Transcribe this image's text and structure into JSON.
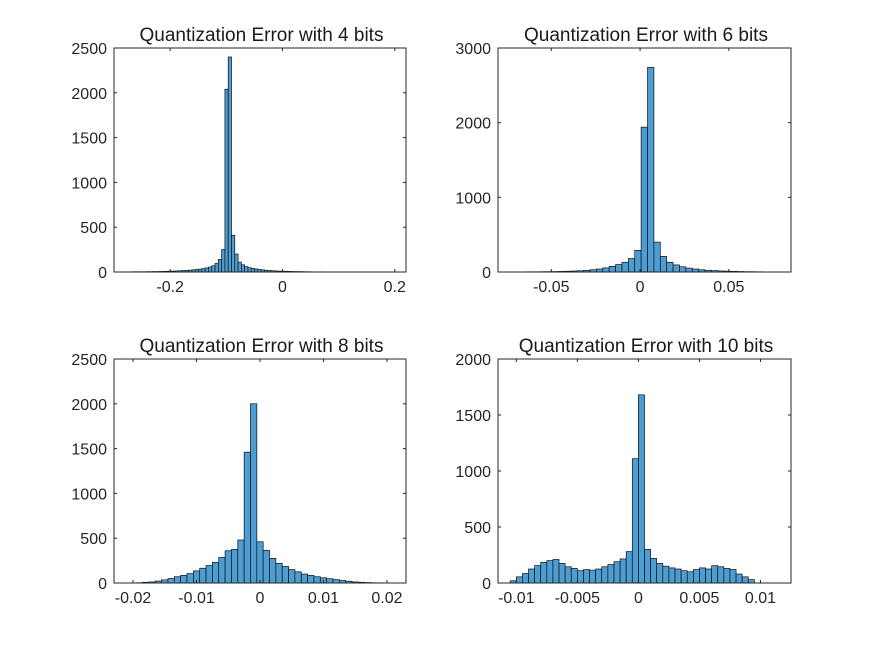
{
  "figure": {
    "colors": {
      "bar_fill": "#4d9dd3",
      "bar_edge": "#111111",
      "axis": "#262626"
    }
  },
  "chart_data": [
    {
      "type": "bar",
      "title": "Quantization Error with 4 bits",
      "xlabel": "",
      "ylabel": "",
      "xlim": [
        -0.3,
        0.22
      ],
      "ylim": [
        0,
        2500
      ],
      "xticks": [
        -0.2,
        0,
        0.2
      ],
      "xtick_labels": [
        "-0.2",
        "0",
        "0.2"
      ],
      "yticks": [
        0,
        500,
        1000,
        1500,
        2000,
        2500
      ],
      "ytick_labels": [
        "0",
        "500",
        "1000",
        "1500",
        "2000",
        "2500"
      ],
      "bin_edges_start": -0.29,
      "bin_width": 0.00586,
      "values": [
        2,
        2,
        2,
        2,
        3,
        3,
        3,
        3,
        4,
        4,
        5,
        5,
        6,
        7,
        8,
        9,
        10,
        12,
        14,
        16,
        18,
        21,
        24,
        28,
        32,
        38,
        45,
        55,
        70,
        95,
        140,
        250,
        2040,
        2400,
        410,
        200,
        110,
        80,
        60,
        48,
        40,
        34,
        28,
        24,
        20,
        17,
        14,
        12,
        10,
        9,
        8,
        7,
        6,
        5,
        5,
        4,
        3,
        3,
        2,
        2,
        2,
        2,
        1,
        1,
        1
      ]
    },
    {
      "type": "bar",
      "title": "Quantization Error with 6 bits",
      "xlabel": "",
      "ylabel": "",
      "xlim": [
        -0.08,
        0.085
      ],
      "ylim": [
        0,
        3000
      ],
      "xticks": [
        -0.05,
        0,
        0.05
      ],
      "xtick_labels": [
        "-0.05",
        "0",
        "0.05"
      ],
      "yticks": [
        0,
        1000,
        2000,
        3000
      ],
      "ytick_labels": [
        "0",
        "1000",
        "2000",
        "3000"
      ],
      "bin_edges_start": -0.075,
      "bin_width": 0.0036,
      "values": [
        1,
        2,
        2,
        3,
        3,
        4,
        5,
        6,
        8,
        10,
        13,
        17,
        22,
        30,
        40,
        55,
        75,
        100,
        130,
        180,
        290,
        1940,
        2740,
        400,
        210,
        130,
        95,
        70,
        52,
        40,
        30,
        23,
        18,
        14,
        11,
        9,
        7,
        5,
        4,
        3,
        2,
        2
      ]
    },
    {
      "type": "bar",
      "title": "Quantization Error with 8 bits",
      "xlabel": "",
      "ylabel": "",
      "xlim": [
        -0.023,
        0.023
      ],
      "ylim": [
        0,
        2500
      ],
      "xticks": [
        -0.02,
        -0.01,
        0,
        0.01,
        0.02
      ],
      "xtick_labels": [
        "-0.02",
        "-0.01",
        "0",
        "0.01",
        "0.02"
      ],
      "yticks": [
        0,
        500,
        1000,
        1500,
        2000,
        2500
      ],
      "ytick_labels": [
        "0",
        "500",
        "1000",
        "1500",
        "2000",
        "2500"
      ],
      "bin_edges_start": -0.0195,
      "bin_width": 0.001,
      "values": [
        3,
        8,
        12,
        22,
        35,
        50,
        70,
        85,
        105,
        135,
        165,
        195,
        230,
        285,
        360,
        375,
        480,
        1460,
        2000,
        460,
        365,
        275,
        220,
        185,
        150,
        125,
        100,
        85,
        70,
        58,
        48,
        38,
        28,
        20,
        12,
        8,
        5,
        3,
        2
      ]
    },
    {
      "type": "bar",
      "title": "Quantization Error with 10 bits",
      "xlabel": "",
      "ylabel": "",
      "xlim": [
        -0.0115,
        0.0125
      ],
      "ylim": [
        0,
        2000
      ],
      "xticks": [
        -0.01,
        -0.005,
        0,
        0.005,
        0.01
      ],
      "xtick_labels": [
        "-0.01",
        "-0.005",
        "0",
        "0.005",
        "0.01"
      ],
      "yticks": [
        0,
        500,
        1000,
        1500,
        2000
      ],
      "ytick_labels": [
        "0",
        "500",
        "1000",
        "1500",
        "2000"
      ],
      "bin_edges_start": -0.0105,
      "bin_width": 0.0005,
      "values": [
        20,
        55,
        85,
        125,
        155,
        185,
        200,
        210,
        175,
        145,
        130,
        110,
        120,
        115,
        125,
        145,
        165,
        190,
        215,
        280,
        1110,
        1680,
        300,
        220,
        175,
        150,
        135,
        125,
        110,
        100,
        120,
        135,
        125,
        155,
        145,
        130,
        120,
        80,
        55,
        30
      ]
    }
  ]
}
